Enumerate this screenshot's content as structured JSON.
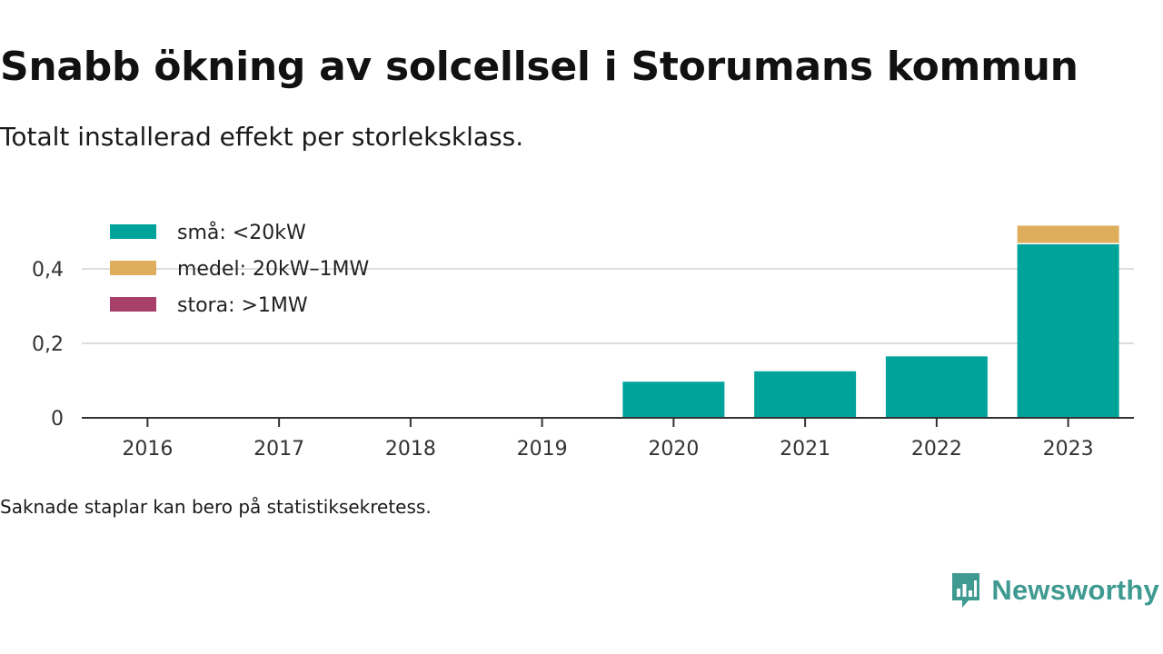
{
  "title": "Snabb ökning av solcellsel i Storumans kommun",
  "subtitle": "Totalt installerad effekt per storleksklass.",
  "footnote": "Saknade staplar kan bero på statistiksekretess.",
  "brand": {
    "name": "Newsworthy",
    "logo_icon": "newsworthy-chart-bubble-icon",
    "color": "#3f9a91"
  },
  "chart_data": {
    "type": "bar",
    "stacked": true,
    "categories": [
      "2016",
      "2017",
      "2018",
      "2019",
      "2020",
      "2021",
      "2022",
      "2023"
    ],
    "series": [
      {
        "name": "små: <20kW",
        "color": "#00a39a",
        "values": [
          0,
          0,
          0,
          0,
          0.097,
          0.125,
          0.165,
          0.466
        ]
      },
      {
        "name": "medel: 20kW–1MW",
        "color": "#dfae5c",
        "values": [
          0,
          0,
          0,
          0,
          0,
          0,
          0,
          0.05
        ]
      },
      {
        "name": "stora: >1MW",
        "color": "#a8406c",
        "values": [
          0,
          0,
          0,
          0,
          0,
          0,
          0,
          0
        ]
      }
    ],
    "yticks": [
      {
        "value": 0,
        "label": "0"
      },
      {
        "value": 0.2,
        "label": "0,2"
      },
      {
        "value": 0.4,
        "label": "0,4"
      }
    ],
    "ylim": [
      0,
      0.55
    ],
    "grid": true,
    "legend_position": "top-left"
  }
}
